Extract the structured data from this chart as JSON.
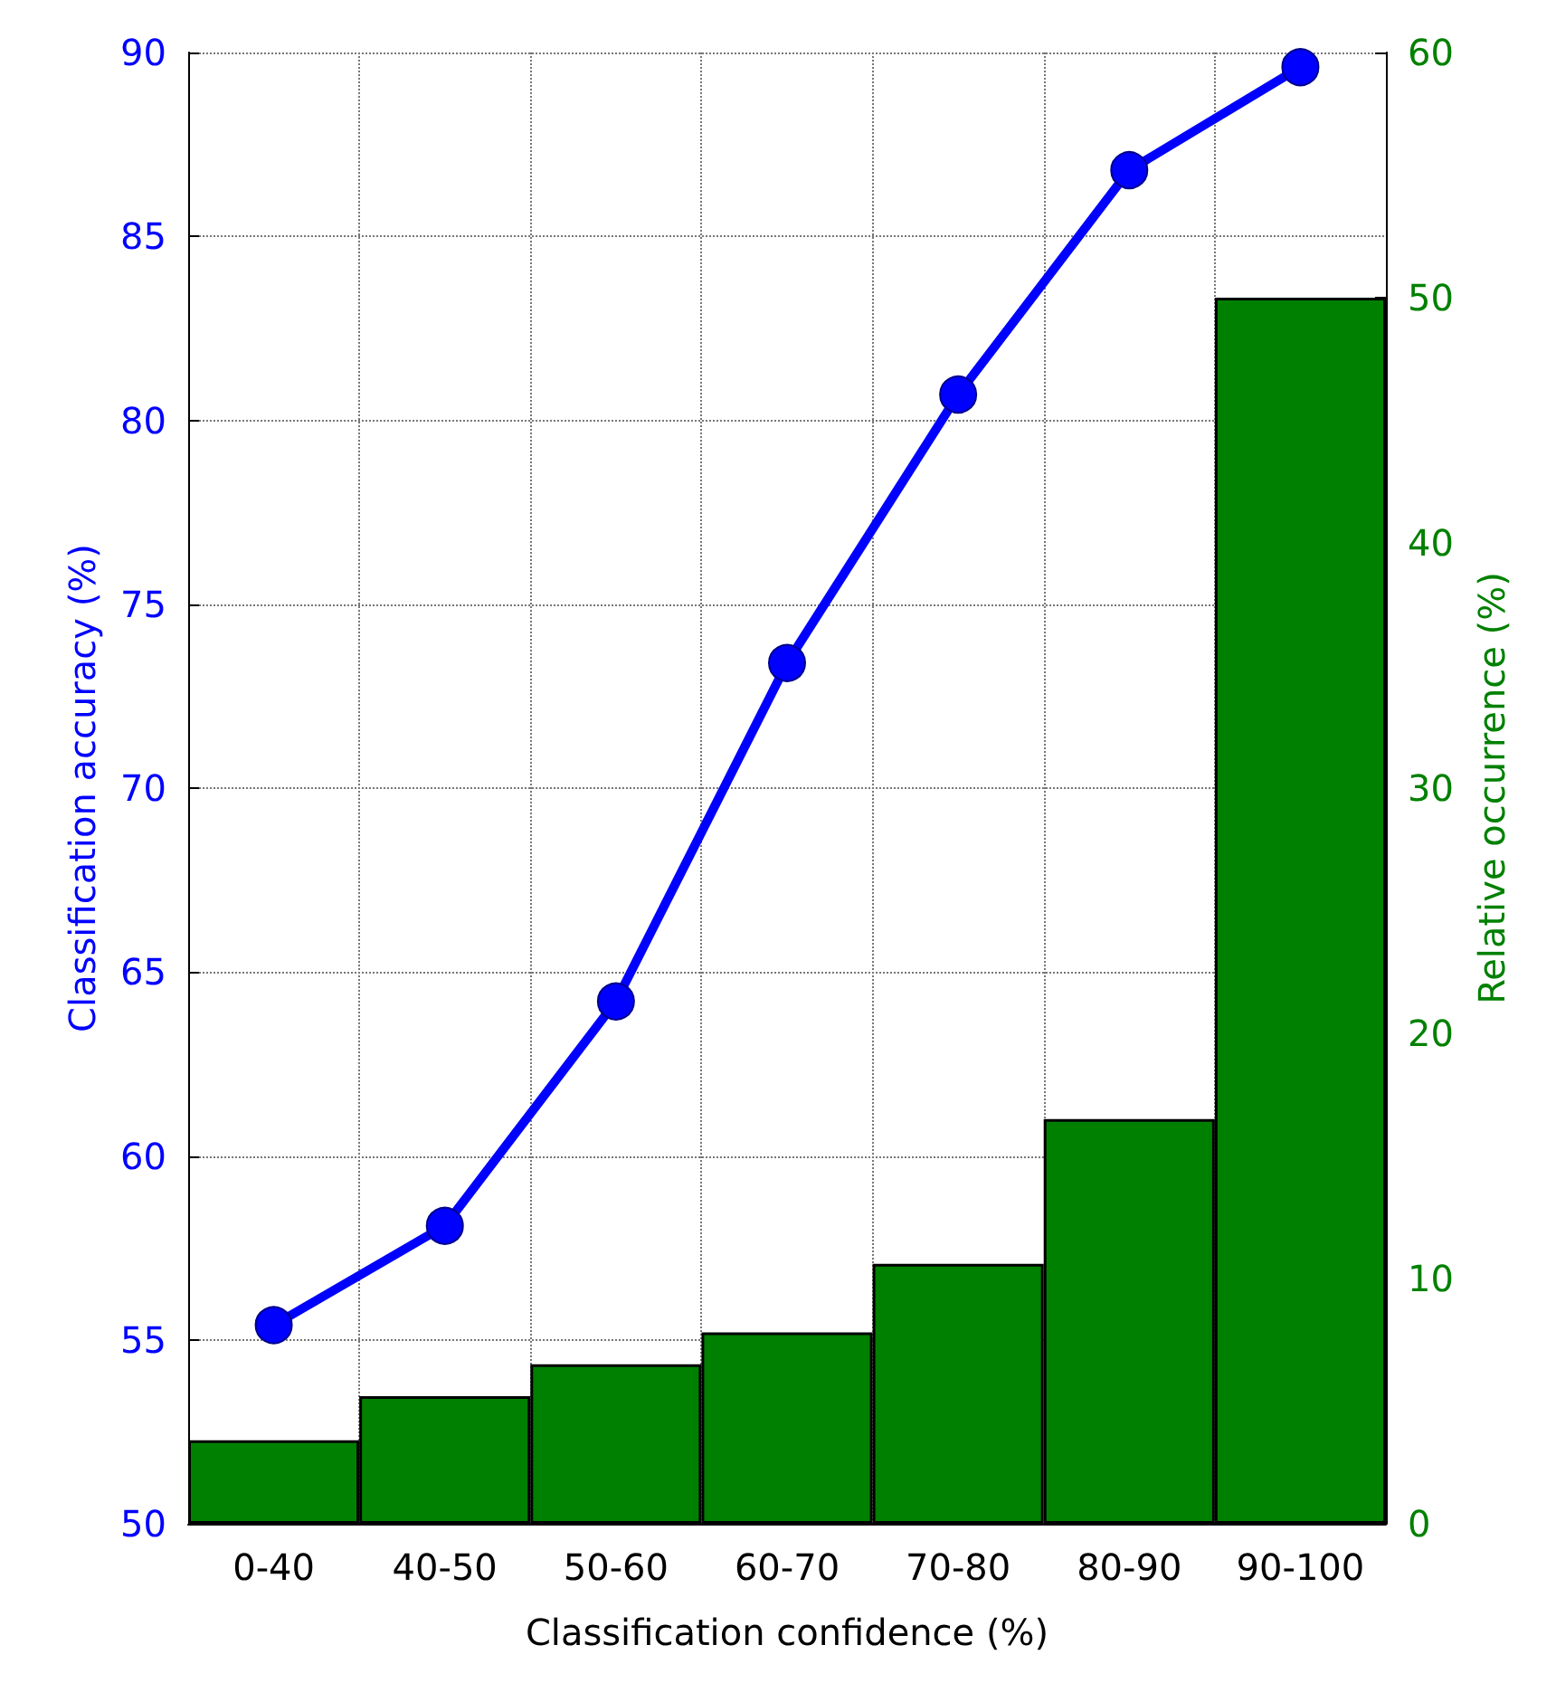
{
  "chart_data": {
    "type": "bar",
    "categories": [
      "0-40",
      "40-50",
      "50-60",
      "60-70",
      "70-80",
      "80-90",
      "90-100"
    ],
    "xlabel": "Classification confidence (%)",
    "ylabel": "Classification accuracy (%)",
    "y2label": "Relative occurrence (%)",
    "series": [
      {
        "axis": "y2",
        "color": "#008000",
        "values": [
          3.4,
          5.2,
          6.5,
          7.8,
          10.6,
          16.5,
          50
        ]
      },
      {
        "type": "line",
        "color": "#0000ff",
        "values": [
          55.4,
          58.1,
          64.2,
          73.4,
          80.7,
          86.8,
          89.6
        ],
        "marker": "circle",
        "line_style": "solid"
      }
    ],
    "ylim": [
      50,
      90
    ],
    "yticks": [
      50,
      55,
      60,
      65,
      70,
      75,
      80,
      85,
      90
    ],
    "y2lim": [
      0,
      60
    ],
    "y2ticks": [
      0,
      10,
      20,
      30,
      40,
      50,
      60
    ],
    "grid": true
  }
}
